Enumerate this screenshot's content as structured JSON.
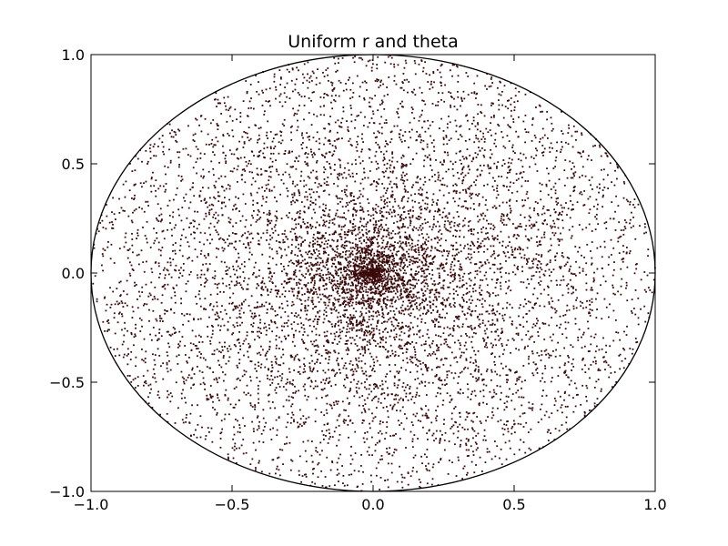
{
  "chart_data": {
    "type": "scatter",
    "title": "Uniform r and theta",
    "xlabel": "",
    "ylabel": "",
    "xlim": [
      -1.0,
      1.0
    ],
    "ylim": [
      -1.0,
      1.0
    ],
    "xticks": [
      -1.0,
      -0.5,
      0.0,
      0.5,
      1.0
    ],
    "yticks": [
      -1.0,
      -0.5,
      0.0,
      0.5,
      1.0
    ],
    "xtick_labels": [
      "−1.0",
      "−0.5",
      "0.0",
      "0.5",
      "1.0"
    ],
    "ytick_labels": [
      "−1.0",
      "−0.5",
      "0.0",
      "0.5",
      "1.0"
    ],
    "grid": false,
    "legend": "none",
    "point_color": "#3a0a0a",
    "reference_circle": {
      "center": [
        0,
        0
      ],
      "radius": 1.0,
      "color": "#000000"
    },
    "generation": {
      "r_distribution": "uniform",
      "r_range": [
        0,
        1
      ],
      "theta_distribution": "uniform",
      "theta_range_deg": [
        0,
        360
      ],
      "n_points": 8000
    }
  }
}
